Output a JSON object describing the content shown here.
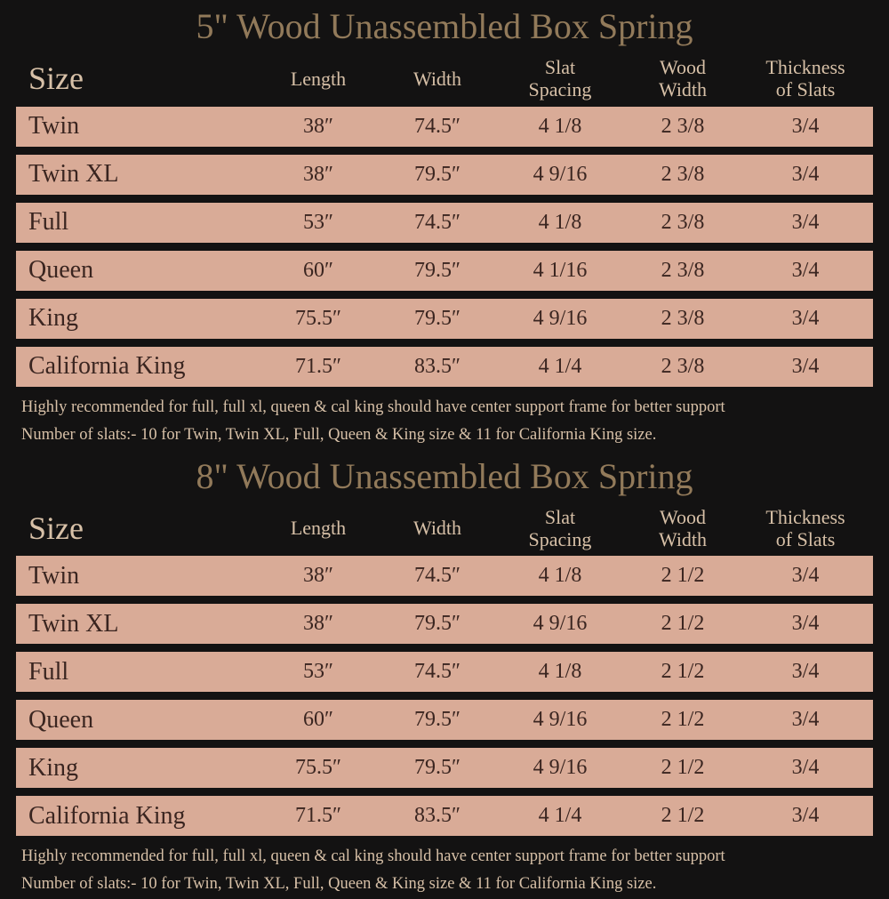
{
  "colors": {
    "background": "#131212",
    "title": "#927a5a",
    "header_text": "#d7c0a7",
    "row_bg": "#d9ab97",
    "row_text": "#3a2520",
    "footnote_text": "#d7c0a7"
  },
  "columns": [
    {
      "key": "size",
      "label": "Size"
    },
    {
      "key": "length",
      "label": "Length"
    },
    {
      "key": "width",
      "label": "Width"
    },
    {
      "key": "slat",
      "label": "Slat\nSpacing"
    },
    {
      "key": "wood",
      "label": "Wood\nWidth"
    },
    {
      "key": "thick",
      "label": "Thickness\nof Slats"
    }
  ],
  "tables": [
    {
      "title": "5\" Wood Unassembled Box Spring",
      "rows": [
        {
          "size": "Twin",
          "length": "38″",
          "width": "74.5″",
          "slat": "4 1/8",
          "wood": "2 3/8",
          "thick": "3/4"
        },
        {
          "size": "Twin XL",
          "length": "38″",
          "width": "79.5″",
          "slat": "4 9/16",
          "wood": "2 3/8",
          "thick": "3/4"
        },
        {
          "size": "Full",
          "length": "53″",
          "width": "74.5″",
          "slat": "4 1/8",
          "wood": "2 3/8",
          "thick": "3/4"
        },
        {
          "size": "Queen",
          "length": "60″",
          "width": "79.5″",
          "slat": "4 1/16",
          "wood": "2 3/8",
          "thick": "3/4"
        },
        {
          "size": "King",
          "length": "75.5″",
          "width": "79.5″",
          "slat": "4 9/16",
          "wood": "2 3/8",
          "thick": "3/4"
        },
        {
          "size": "California King",
          "length": "71.5″",
          "width": "83.5″",
          "slat": "4 1/4",
          "wood": "2 3/8",
          "thick": "3/4"
        }
      ],
      "footnotes": [
        "Highly recommended for full, full xl, queen & cal king should have center support frame  for better support",
        "Number of slats:- 10 for Twin, Twin XL, Full, Queen & King size & 11 for California King size."
      ]
    },
    {
      "title": "8\" Wood Unassembled Box Spring",
      "rows": [
        {
          "size": "Twin",
          "length": "38″",
          "width": "74.5″",
          "slat": "4 1/8",
          "wood": "2 1/2",
          "thick": "3/4"
        },
        {
          "size": "Twin XL",
          "length": "38″",
          "width": "79.5″",
          "slat": "4 9/16",
          "wood": "2 1/2",
          "thick": "3/4"
        },
        {
          "size": "Full",
          "length": "53″",
          "width": "74.5″",
          "slat": "4 1/8",
          "wood": "2 1/2",
          "thick": "3/4"
        },
        {
          "size": "Queen",
          "length": "60″",
          "width": "79.5″",
          "slat": "4 9/16",
          "wood": "2 1/2",
          "thick": "3/4"
        },
        {
          "size": "King",
          "length": "75.5″",
          "width": "79.5″",
          "slat": "4 9/16",
          "wood": "2 1/2",
          "thick": "3/4"
        },
        {
          "size": "California King",
          "length": "71.5″",
          "width": "83.5″",
          "slat": "4 1/4",
          "wood": "2 1/2",
          "thick": "3/4"
        }
      ],
      "footnotes": [
        "Highly recommended for full, full xl, queen & cal king should have center support frame  for better support",
        "Number of slats:- 10 for Twin, Twin XL, Full, Queen & King size & 11 for California King size."
      ]
    }
  ]
}
